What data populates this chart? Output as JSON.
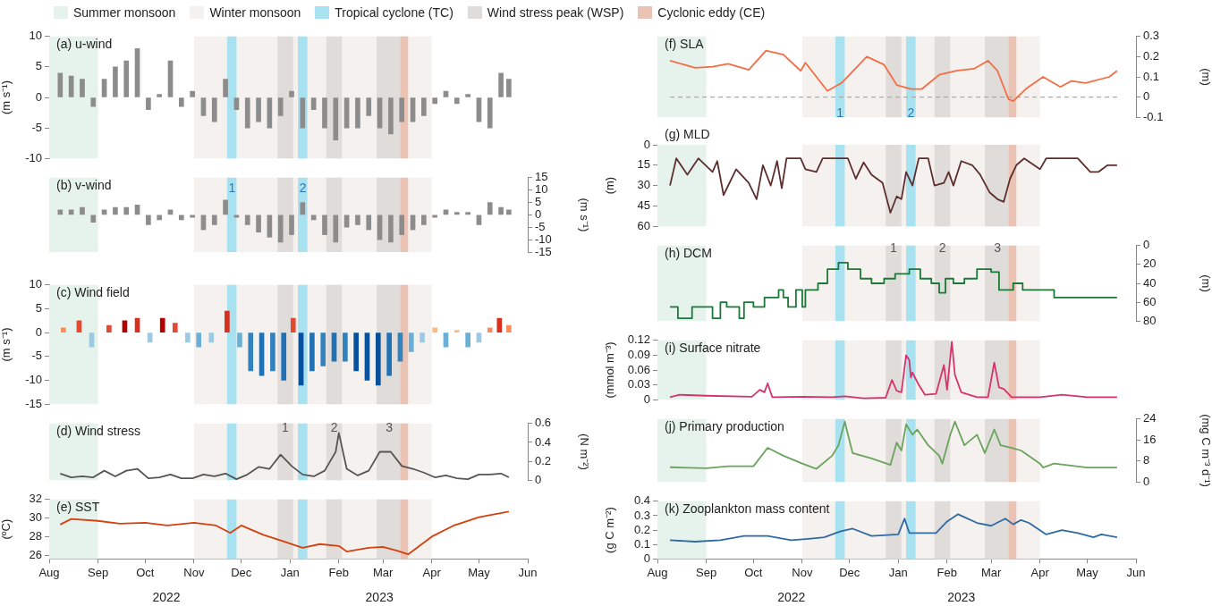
{
  "chart_data": [
    {
      "type": "bar",
      "title": "(a) u-wind",
      "ylabel": "(m s⁻¹)",
      "color": "#8c8c8c",
      "legend": "top right",
      "tick_labels": "y",
      "xlim": [
        "2022-08-01",
        "2023-06-01"
      ],
      "ylim": [
        -10,
        10
      ],
      "yticks": [
        -10,
        -5,
        0,
        5,
        10
      ],
      "x": [
        "2022-08-08",
        "2022-08-15",
        "2022-08-22",
        "2022-08-29",
        "2022-09-05",
        "2022-09-12",
        "2022-09-19",
        "2022-09-26",
        "2022-10-03",
        "2022-10-10",
        "2022-10-17",
        "2022-10-24",
        "2022-10-31",
        "2022-11-07",
        "2022-11-14",
        "2022-11-21",
        "2022-11-28",
        "2022-12-05",
        "2022-12-12",
        "2022-12-19",
        "2022-12-26",
        "2023-01-02",
        "2023-01-09",
        "2023-01-16",
        "2023-01-23",
        "2023-01-30",
        "2023-02-06",
        "2023-02-13",
        "2023-02-20",
        "2023-02-27",
        "2023-03-06",
        "2023-03-13",
        "2023-03-20",
        "2023-03-27",
        "2023-04-03",
        "2023-04-10",
        "2023-04-17",
        "2023-04-24",
        "2023-05-01",
        "2023-05-08",
        "2023-05-15",
        "2023-05-20"
      ],
      "values": [
        4,
        3.5,
        3,
        -1.5,
        3,
        5,
        6,
        8,
        -2,
        0.5,
        6,
        -1.5,
        1,
        -3,
        -4,
        3,
        -2,
        -5,
        -4,
        -5,
        -3,
        1,
        -5,
        -2,
        -5,
        -7,
        -5,
        -5,
        -3,
        -5,
        -6,
        -4,
        -4,
        -3,
        -1,
        1,
        -1,
        0.5,
        -4,
        -5,
        4,
        3
      ],
      "bands": [
        {
          "axis": "x",
          "from": "2022-08-01",
          "to": "2022-09-01",
          "label": "Summer monsoon",
          "color": "#e6f2ec"
        },
        {
          "axis": "x",
          "from": "2022-11-01",
          "to": "2023-04-01",
          "label": "Winter monsoon",
          "color": "#f5f1ef"
        },
        {
          "axis": "x",
          "from": "2022-11-22",
          "to": "2022-11-28",
          "label": "Tropical cyclone (TC)",
          "color": "#a8e2f0"
        },
        {
          "axis": "x",
          "from": "2022-12-24",
          "to": "2023-01-03",
          "label": "Wind stress peak (WSP)",
          "color": "#e0dcda"
        },
        {
          "axis": "x",
          "from": "2023-01-06",
          "to": "2023-01-12",
          "color": "#a8e2f0"
        },
        {
          "axis": "x",
          "from": "2023-01-24",
          "to": "2023-02-03",
          "color": "#e0dcda"
        },
        {
          "axis": "x",
          "from": "2023-02-25",
          "to": "2023-03-12",
          "color": "#e0dcda"
        },
        {
          "axis": "x",
          "from": "2023-03-12",
          "to": "2023-03-17",
          "label": "Cyclonic eddy (CE)",
          "color": "#ebc3b5"
        }
      ]
    },
    {
      "type": "bar",
      "title": "(b) v-wind",
      "ylabel": "(m s⁻¹)",
      "color": "#8c8c8c",
      "tick_labels": "y",
      "xlim": [
        "2022-08-01",
        "2023-06-01"
      ],
      "ylim": [
        -15,
        15
      ],
      "yticks": [
        -15,
        -10,
        -5,
        0,
        5,
        10,
        15
      ],
      "x": [
        "2022-08-08",
        "2022-08-15",
        "2022-08-22",
        "2022-08-29",
        "2022-09-05",
        "2022-09-12",
        "2022-09-19",
        "2022-09-26",
        "2022-10-03",
        "2022-10-10",
        "2022-10-17",
        "2022-10-24",
        "2022-10-31",
        "2022-11-07",
        "2022-11-14",
        "2022-11-21",
        "2022-11-28",
        "2022-12-05",
        "2022-12-12",
        "2022-12-19",
        "2022-12-26",
        "2023-01-02",
        "2023-01-09",
        "2023-01-16",
        "2023-01-23",
        "2023-01-30",
        "2023-02-06",
        "2023-02-13",
        "2023-02-20",
        "2023-02-27",
        "2023-03-06",
        "2023-03-13",
        "2023-03-20",
        "2023-03-27",
        "2023-04-03",
        "2023-04-10",
        "2023-04-17",
        "2023-04-24",
        "2023-05-01",
        "2023-05-08",
        "2023-05-15",
        "2023-05-20"
      ],
      "values": [
        2,
        2,
        3,
        -3,
        2,
        3,
        3,
        4,
        -4,
        -2,
        2,
        -2,
        -1,
        -6,
        -4,
        6,
        -1,
        -4,
        -7,
        -9,
        -11,
        -8,
        5,
        -2,
        -8,
        -11,
        -5,
        -4,
        -6,
        -10,
        -11,
        -8,
        -6,
        -4,
        -1,
        2,
        1,
        1,
        -4,
        5,
        3,
        2
      ],
      "annotations": [
        "1",
        "2"
      ],
      "bands": [
        {
          "axis": "x",
          "from": "2022-08-01",
          "to": "2022-09-01",
          "color": "#e6f2ec"
        },
        {
          "axis": "x",
          "from": "2022-11-01",
          "to": "2023-04-01",
          "color": "#f5f1ef"
        },
        {
          "axis": "x",
          "from": "2022-11-22",
          "to": "2022-11-28",
          "color": "#a8e2f0"
        },
        {
          "axis": "x",
          "from": "2022-12-24",
          "to": "2023-01-03",
          "color": "#e0dcda"
        },
        {
          "axis": "x",
          "from": "2023-01-06",
          "to": "2023-01-12",
          "color": "#a8e2f0"
        },
        {
          "axis": "x",
          "from": "2023-01-24",
          "to": "2023-02-03",
          "color": "#e0dcda"
        },
        {
          "axis": "x",
          "from": "2023-02-25",
          "to": "2023-03-12",
          "color": "#e0dcda"
        },
        {
          "axis": "x",
          "from": "2023-03-12",
          "to": "2023-03-17",
          "color": "#ebc3b5"
        }
      ]
    },
    {
      "type": "bar",
      "title": "(c) Wind field",
      "ylabel": "(m s⁻¹)",
      "tick_labels": "y",
      "xlim": [
        "2022-08-01",
        "2023-06-01"
      ],
      "ylim": [
        -15,
        10
      ],
      "yticks": [
        -15,
        -10,
        -5,
        0,
        5,
        10
      ],
      "x": [
        "2022-08-10",
        "2022-08-20",
        "2022-08-28",
        "2022-09-08",
        "2022-09-18",
        "2022-09-26",
        "2022-10-04",
        "2022-10-12",
        "2022-10-20",
        "2022-10-28",
        "2022-11-04",
        "2022-11-12",
        "2022-11-22",
        "2022-11-30",
        "2022-12-07",
        "2022-12-14",
        "2022-12-21",
        "2022-12-28",
        "2023-01-03",
        "2023-01-08",
        "2023-01-15",
        "2023-01-22",
        "2023-01-29",
        "2023-02-05",
        "2023-02-12",
        "2023-02-19",
        "2023-02-26",
        "2023-03-05",
        "2023-03-12",
        "2023-03-19",
        "2023-03-26",
        "2023-04-03",
        "2023-04-10",
        "2023-04-17",
        "2023-04-24",
        "2023-05-01",
        "2023-05-08",
        "2023-05-14",
        "2023-05-20"
      ],
      "values": [
        1,
        2.5,
        -3,
        1.5,
        2.5,
        3,
        -2,
        3,
        2,
        -2,
        -3,
        -2,
        4.5,
        -3,
        -8,
        -9,
        -8,
        -10,
        3,
        -11,
        -8,
        -7,
        -6,
        -6,
        -8,
        -10,
        -11,
        -9,
        -6,
        -4,
        -2,
        1,
        -3,
        0.5,
        -3,
        -2,
        1,
        3,
        1.5
      ],
      "colors": [
        "#fc8d59",
        "#e34a33",
        "#9ecae1",
        "#e34a33",
        "#b30000",
        "#d7301f",
        "#9ecae1",
        "#b30000",
        "#e34a33",
        "#9ecae1",
        "#6baed6",
        "#9ecae1",
        "#d7301f",
        "#6baed6",
        "#3182bd",
        "#2171b5",
        "#3182bd",
        "#2171b5",
        "#e34a33",
        "#08519c",
        "#2171b5",
        "#3182bd",
        "#2171b5",
        "#3182bd",
        "#08519c",
        "#08519c",
        "#08519c",
        "#2171b5",
        "#3182bd",
        "#6baed6",
        "#9ecae1",
        "#fdbb84",
        "#6baed6",
        "#fdbb84",
        "#6baed6",
        "#9ecae1",
        "#fc8d59",
        "#d7301f",
        "#fc8d59"
      ],
      "bands": [
        {
          "axis": "x",
          "from": "2022-08-01",
          "to": "2022-09-01",
          "color": "#e6f2ec"
        },
        {
          "axis": "x",
          "from": "2022-11-01",
          "to": "2023-04-01",
          "color": "#f5f1ef"
        },
        {
          "axis": "x",
          "from": "2022-11-22",
          "to": "2022-11-28",
          "color": "#a8e2f0"
        },
        {
          "axis": "x",
          "from": "2022-12-24",
          "to": "2023-01-03",
          "color": "#e0dcda"
        },
        {
          "axis": "x",
          "from": "2023-01-06",
          "to": "2023-01-12",
          "color": "#a8e2f0"
        },
        {
          "axis": "x",
          "from": "2023-01-24",
          "to": "2023-02-03",
          "color": "#e0dcda"
        },
        {
          "axis": "x",
          "from": "2023-02-25",
          "to": "2023-03-12",
          "color": "#e0dcda"
        },
        {
          "axis": "x",
          "from": "2023-03-12",
          "to": "2023-03-17",
          "color": "#ebc3b5"
        }
      ]
    },
    {
      "type": "line",
      "title": "(d) Wind stress",
      "ylabel": "(N m⁻²)",
      "color": "#555555",
      "tick_labels": "y",
      "xlim": [
        "2022-08-01",
        "2023-06-01"
      ],
      "ylim": [
        0,
        0.6
      ],
      "yticks": [
        0,
        0.2,
        0.4,
        0.6
      ],
      "x": [
        "2022-08-08",
        "2022-08-15",
        "2022-08-22",
        "2022-08-29",
        "2022-09-05",
        "2022-09-12",
        "2022-09-19",
        "2022-09-26",
        "2022-10-03",
        "2022-10-10",
        "2022-10-17",
        "2022-10-24",
        "2022-10-31",
        "2022-11-07",
        "2022-11-14",
        "2022-11-21",
        "2022-11-28",
        "2022-12-05",
        "2022-12-12",
        "2022-12-19",
        "2022-12-26",
        "2023-01-02",
        "2023-01-09",
        "2023-01-16",
        "2023-01-23",
        "2023-01-30",
        "2023-02-01",
        "2023-02-06",
        "2023-02-13",
        "2023-02-20",
        "2023-02-27",
        "2023-03-06",
        "2023-03-13",
        "2023-03-20",
        "2023-03-27",
        "2023-04-03",
        "2023-04-10",
        "2023-04-17",
        "2023-04-24",
        "2023-05-01",
        "2023-05-08",
        "2023-05-15",
        "2023-05-20"
      ],
      "values": [
        0.07,
        0.03,
        0.04,
        0.03,
        0.1,
        0.04,
        0.1,
        0.12,
        0.02,
        0.03,
        0.06,
        0.02,
        0.02,
        0.06,
        0.04,
        0.07,
        0.01,
        0.06,
        0.14,
        0.12,
        0.27,
        0.15,
        0.06,
        0.04,
        0.1,
        0.3,
        0.5,
        0.12,
        0.05,
        0.1,
        0.3,
        0.3,
        0.15,
        0.12,
        0.08,
        0.03,
        0.05,
        0.02,
        0.01,
        0.06,
        0.06,
        0.07,
        0.03
      ],
      "annotations": [
        {
          "text": "1",
          "x": "2022-12-29",
          "y": 0.55
        },
        {
          "text": "2",
          "x": "2023-01-29",
          "y": 0.55
        },
        {
          "text": "3",
          "x": "2023-03-05",
          "y": 0.55
        }
      ],
      "bands": [
        {
          "axis": "x",
          "from": "2022-08-01",
          "to": "2022-09-01",
          "color": "#e6f2ec"
        },
        {
          "axis": "x",
          "from": "2022-11-01",
          "to": "2023-04-01",
          "color": "#f5f1ef"
        },
        {
          "axis": "x",
          "from": "2022-11-22",
          "to": "2022-11-28",
          "color": "#a8e2f0"
        },
        {
          "axis": "x",
          "from": "2022-12-24",
          "to": "2023-01-03",
          "color": "#e0dcda"
        },
        {
          "axis": "x",
          "from": "2023-01-06",
          "to": "2023-01-12",
          "color": "#a8e2f0"
        },
        {
          "axis": "x",
          "from": "2023-01-24",
          "to": "2023-02-03",
          "color": "#e0dcda"
        },
        {
          "axis": "x",
          "from": "2023-02-25",
          "to": "2023-03-12",
          "color": "#e0dcda"
        },
        {
          "axis": "x",
          "from": "2023-03-12",
          "to": "2023-03-17",
          "color": "#ebc3b5"
        }
      ]
    },
    {
      "type": "line",
      "title": "(e) SST",
      "ylabel": "(ºC)",
      "color": "#d4410f",
      "xlim": [
        "2022-08-01",
        "2023-06-01"
      ],
      "ylim": [
        25.6,
        32
      ],
      "yticks": [
        26,
        28,
        30,
        32
      ],
      "xticks": [
        {
          "value": "2022-08-01",
          "label": "Aug"
        },
        {
          "value": "2022-09-01",
          "label": "Sep"
        },
        {
          "value": "2022-10-01",
          "label": "Oct"
        },
        {
          "value": "2022-11-01",
          "label": "Nov"
        },
        {
          "value": "2022-12-01",
          "label": "Dec"
        },
        {
          "value": "2023-01-01",
          "label": "Jan"
        },
        {
          "value": "2023-02-01",
          "label": "Feb"
        },
        {
          "value": "2023-03-01",
          "label": "Mar"
        },
        {
          "value": "2023-04-01",
          "label": "Apr"
        },
        {
          "value": "2023-05-01",
          "label": "May"
        },
        {
          "value": "2023-06-01",
          "label": "Jun"
        }
      ],
      "x": [
        "2022-08-08",
        "2022-08-15",
        "2022-09-01",
        "2022-09-15",
        "2022-10-01",
        "2022-10-15",
        "2022-11-01",
        "2022-11-15",
        "2022-11-24",
        "2022-12-01",
        "2022-12-15",
        "2022-12-26",
        "2023-01-09",
        "2023-01-20",
        "2023-02-01",
        "2023-02-06",
        "2023-02-20",
        "2023-03-01",
        "2023-03-10",
        "2023-03-17",
        "2023-04-01",
        "2023-04-15",
        "2023-05-01",
        "2023-05-20"
      ],
      "values": [
        29.3,
        29.9,
        29.7,
        29.4,
        29.5,
        29.2,
        29.5,
        29.2,
        28.4,
        29.2,
        28.2,
        27.6,
        26.8,
        27.2,
        27.0,
        26.4,
        26.8,
        26.9,
        26.5,
        26.1,
        28.0,
        29.2,
        30.1,
        30.7
      ],
      "annotations": [
        "2022",
        "2023"
      ],
      "bands": [
        {
          "axis": "x",
          "from": "2022-08-01",
          "to": "2022-09-01",
          "color": "#e6f2ec"
        },
        {
          "axis": "x",
          "from": "2022-11-01",
          "to": "2023-04-01",
          "color": "#f5f1ef"
        },
        {
          "axis": "x",
          "from": "2022-11-22",
          "to": "2022-11-28",
          "color": "#a8e2f0"
        },
        {
          "axis": "x",
          "from": "2022-12-24",
          "to": "2023-01-03",
          "color": "#e0dcda"
        },
        {
          "axis": "x",
          "from": "2023-01-06",
          "to": "2023-01-12",
          "color": "#a8e2f0"
        },
        {
          "axis": "x",
          "from": "2023-01-24",
          "to": "2023-02-03",
          "color": "#e0dcda"
        },
        {
          "axis": "x",
          "from": "2023-02-25",
          "to": "2023-03-12",
          "color": "#e0dcda"
        },
        {
          "axis": "x",
          "from": "2023-03-12",
          "to": "2023-03-17",
          "color": "#ebc3b5"
        }
      ]
    },
    {
      "type": "line",
      "title": "(f) SLA",
      "ylabel": "(m)",
      "color": "#f46d43",
      "tick_labels": "y",
      "xlim": [
        "2022-08-01",
        "2023-06-01"
      ],
      "ylim": [
        -0.1,
        0.3
      ],
      "yticks": [
        -0.1,
        0,
        0.1,
        0.2,
        0.3
      ],
      "x": [
        "2022-08-09",
        "2022-08-25",
        "2022-09-05",
        "2022-09-15",
        "2022-09-28",
        "2022-10-09",
        "2022-10-20",
        "2022-10-31",
        "2022-11-03",
        "2022-11-17",
        "2022-11-26",
        "2022-12-12",
        "2022-12-23",
        "2022-12-31",
        "2023-01-09",
        "2023-01-16",
        "2023-01-27",
        "2023-02-07",
        "2023-02-18",
        "2023-02-27",
        "2023-03-05",
        "2023-03-12",
        "2023-03-15",
        "2023-03-23",
        "2023-04-03",
        "2023-04-14",
        "2023-04-21",
        "2023-04-30",
        "2023-05-15",
        "2023-05-20"
      ],
      "values": [
        0.18,
        0.145,
        0.15,
        0.165,
        0.135,
        0.23,
        0.21,
        0.13,
        0.17,
        0.03,
        0.07,
        0.2,
        0.16,
        0.06,
        0.04,
        0.04,
        0.11,
        0.13,
        0.14,
        0.18,
        0.13,
        -0.01,
        -0.02,
        0.04,
        0.1,
        0.05,
        0.08,
        0.07,
        0.1,
        0.13
      ],
      "ref_lines": [
        {
          "axis": "y",
          "value": 0,
          "color": "#aaaaaa",
          "line_style": "dashed"
        }
      ],
      "annotations": [
        {
          "text": "1",
          "x": "2022-11-25",
          "y": -0.08
        },
        {
          "text": "2",
          "x": "2023-01-09",
          "y": -0.08
        }
      ],
      "bands": [
        {
          "axis": "x",
          "from": "2022-08-01",
          "to": "2022-09-01",
          "color": "#e6f2ec"
        },
        {
          "axis": "x",
          "from": "2022-11-01",
          "to": "2023-04-01",
          "color": "#f5f1ef"
        },
        {
          "axis": "x",
          "from": "2022-11-22",
          "to": "2022-11-28",
          "color": "#a8e2f0"
        },
        {
          "axis": "x",
          "from": "2022-12-24",
          "to": "2023-01-03",
          "color": "#e0dcda"
        },
        {
          "axis": "x",
          "from": "2023-01-06",
          "to": "2023-01-12",
          "color": "#a8e2f0"
        },
        {
          "axis": "x",
          "from": "2023-01-24",
          "to": "2023-02-03",
          "color": "#e0dcda"
        },
        {
          "axis": "x",
          "from": "2023-02-25",
          "to": "2023-03-12",
          "color": "#e0dcda"
        },
        {
          "axis": "x",
          "from": "2023-03-12",
          "to": "2023-03-17",
          "color": "#ebc3b5"
        }
      ]
    },
    {
      "type": "line",
      "title": "(g) MLD",
      "ylabel": "(m)",
      "color": "#5d2e2e",
      "tick_labels": "y",
      "xlim": [
        "2022-08-01",
        "2023-06-01"
      ],
      "ylim": [
        60,
        0
      ],
      "yticks": [
        0,
        15,
        30,
        45,
        60
      ],
      "x": [
        "2022-08-09",
        "2022-08-13",
        "2022-08-20",
        "2022-08-27",
        "2022-09-05",
        "2022-09-08",
        "2022-09-12",
        "2022-09-20",
        "2022-09-28",
        "2022-10-03",
        "2022-10-07",
        "2022-10-12",
        "2022-10-16",
        "2022-10-19",
        "2022-10-22",
        "2022-10-31",
        "2022-11-03",
        "2022-11-10",
        "2022-11-14",
        "2022-11-30",
        "2022-12-05",
        "2022-12-10",
        "2022-12-15",
        "2022-12-22",
        "2022-12-27",
        "2022-12-31",
        "2023-01-03",
        "2023-01-06",
        "2023-01-10",
        "2023-01-14",
        "2023-01-20",
        "2023-01-24",
        "2023-01-30",
        "2023-02-02",
        "2023-02-05",
        "2023-02-10",
        "2023-02-17",
        "2023-02-22",
        "2023-02-28",
        "2023-03-05",
        "2023-03-09",
        "2023-03-13",
        "2023-03-17",
        "2023-03-22",
        "2023-04-01",
        "2023-04-05",
        "2023-04-25",
        "2023-05-03",
        "2023-05-08",
        "2023-05-14",
        "2023-05-20"
      ],
      "values": [
        30,
        10,
        22,
        10,
        20,
        12,
        37,
        18,
        28,
        40,
        15,
        30,
        12,
        32,
        10,
        10,
        18,
        20,
        10,
        10,
        25,
        13,
        22,
        28,
        50,
        38,
        40,
        20,
        30,
        10,
        10,
        30,
        28,
        20,
        30,
        12,
        15,
        22,
        35,
        40,
        42,
        25,
        15,
        10,
        18,
        10,
        10,
        20,
        20,
        15,
        15
      ],
      "bands": [
        {
          "axis": "x",
          "from": "2022-08-01",
          "to": "2022-09-01",
          "color": "#e6f2ec"
        },
        {
          "axis": "x",
          "from": "2022-11-01",
          "to": "2023-04-01",
          "color": "#f5f1ef"
        },
        {
          "axis": "x",
          "from": "2022-11-22",
          "to": "2022-11-28",
          "color": "#a8e2f0"
        },
        {
          "axis": "x",
          "from": "2022-12-24",
          "to": "2023-01-03",
          "color": "#e0dcda"
        },
        {
          "axis": "x",
          "from": "2023-01-06",
          "to": "2023-01-12",
          "color": "#a8e2f0"
        },
        {
          "axis": "x",
          "from": "2023-01-24",
          "to": "2023-02-03",
          "color": "#e0dcda"
        },
        {
          "axis": "x",
          "from": "2023-02-25",
          "to": "2023-03-12",
          "color": "#e0dcda"
        },
        {
          "axis": "x",
          "from": "2023-03-12",
          "to": "2023-03-17",
          "color": "#ebc3b5"
        }
      ]
    },
    {
      "type": "step",
      "title": "(h) DCM",
      "ylabel": "(m)",
      "color": "#1b7837",
      "tick_labels": "y",
      "xlim": [
        "2022-08-01",
        "2023-06-01"
      ],
      "ylim": [
        80,
        0
      ],
      "yticks": [
        0,
        20,
        40,
        60,
        80
      ],
      "x": [
        "2022-08-09",
        "2022-08-14",
        "2022-08-23",
        "2022-09-05",
        "2022-09-10",
        "2022-09-14",
        "2022-09-22",
        "2022-09-25",
        "2022-10-01",
        "2022-10-08",
        "2022-10-17",
        "2022-10-20",
        "2022-10-23",
        "2022-10-28",
        "2022-11-01",
        "2022-11-03",
        "2022-11-11",
        "2022-11-17",
        "2022-11-24",
        "2022-11-30",
        "2022-12-08",
        "2022-12-15",
        "2022-12-23",
        "2022-12-30",
        "2023-01-08",
        "2023-01-15",
        "2023-01-22",
        "2023-01-27",
        "2023-01-31",
        "2023-02-05",
        "2023-02-12",
        "2023-02-20",
        "2023-03-01",
        "2023-03-06",
        "2023-03-15",
        "2023-03-21",
        "2023-04-10",
        "2023-05-20"
      ],
      "values": [
        65,
        77,
        65,
        77,
        60,
        65,
        77,
        60,
        65,
        55,
        47,
        55,
        65,
        47,
        65,
        47,
        40,
        25,
        18,
        25,
        35,
        40,
        35,
        30,
        25,
        35,
        40,
        50,
        35,
        40,
        35,
        25,
        28,
        47,
        40,
        47,
        55,
        55
      ],
      "annotations": [
        {
          "text": "1",
          "x": "2022-12-29",
          "y": 3
        },
        {
          "text": "2",
          "x": "2023-01-29",
          "y": 3
        },
        {
          "text": "3",
          "x": "2023-03-05",
          "y": 3
        }
      ],
      "bands": [
        {
          "axis": "x",
          "from": "2022-08-01",
          "to": "2022-09-01",
          "color": "#e6f2ec"
        },
        {
          "axis": "x",
          "from": "2022-11-01",
          "to": "2023-04-01",
          "color": "#f5f1ef"
        },
        {
          "axis": "x",
          "from": "2022-11-22",
          "to": "2022-11-28",
          "color": "#a8e2f0"
        },
        {
          "axis": "x",
          "from": "2022-12-24",
          "to": "2023-01-03",
          "color": "#e0dcda"
        },
        {
          "axis": "x",
          "from": "2023-01-06",
          "to": "2023-01-12",
          "color": "#a8e2f0"
        },
        {
          "axis": "x",
          "from": "2023-01-24",
          "to": "2023-02-03",
          "color": "#e0dcda"
        },
        {
          "axis": "x",
          "from": "2023-02-25",
          "to": "2023-03-12",
          "color": "#e0dcda"
        },
        {
          "axis": "x",
          "from": "2023-03-12",
          "to": "2023-03-17",
          "color": "#ebc3b5"
        }
      ]
    },
    {
      "type": "line",
      "title": "(i) Surface nitrate",
      "ylabel": "(mmol m⁻³)",
      "color": "#d6336c",
      "tick_labels": "y",
      "xlim": [
        "2022-08-01",
        "2023-06-01"
      ],
      "ylim": [
        0,
        0.12
      ],
      "yticks": [
        0,
        0.03,
        0.06,
        0.09,
        0.12
      ],
      "x": [
        "2022-08-09",
        "2022-08-15",
        "2022-09-01",
        "2022-09-30",
        "2022-10-05",
        "2022-10-08",
        "2022-10-10",
        "2022-10-13",
        "2022-11-01",
        "2022-11-20",
        "2022-11-28",
        "2022-12-10",
        "2022-12-24",
        "2022-12-28",
        "2022-12-31",
        "2023-01-03",
        "2023-01-06",
        "2023-01-08",
        "2023-01-09",
        "2023-01-10",
        "2023-01-14",
        "2023-01-18",
        "2023-01-25",
        "2023-01-30",
        "2023-02-01",
        "2023-02-04",
        "2023-02-06",
        "2023-02-10",
        "2023-02-20",
        "2023-02-27",
        "2023-03-03",
        "2023-03-06",
        "2023-03-09",
        "2023-03-14",
        "2023-04-01",
        "2023-04-15",
        "2023-05-01",
        "2023-05-20"
      ],
      "values": [
        0.005,
        0.01,
        0.008,
        0.006,
        0.02,
        0.015,
        0.033,
        0.005,
        0.006,
        0.005,
        0.007,
        0.003,
        0.004,
        0.04,
        0.018,
        0.015,
        0.09,
        0.08,
        0.045,
        0.055,
        0.03,
        0.01,
        0.012,
        0.07,
        0.02,
        0.117,
        0.05,
        0.015,
        0.005,
        0.005,
        0.075,
        0.025,
        0.022,
        0.005,
        0.005,
        0.01,
        0.005,
        0.005
      ],
      "bands": [
        {
          "axis": "x",
          "from": "2022-08-01",
          "to": "2022-09-01",
          "color": "#e6f2ec"
        },
        {
          "axis": "x",
          "from": "2022-11-01",
          "to": "2023-04-01",
          "color": "#f5f1ef"
        },
        {
          "axis": "x",
          "from": "2022-11-22",
          "to": "2022-11-28",
          "color": "#a8e2f0"
        },
        {
          "axis": "x",
          "from": "2022-12-24",
          "to": "2023-01-03",
          "color": "#e0dcda"
        },
        {
          "axis": "x",
          "from": "2023-01-06",
          "to": "2023-01-12",
          "color": "#a8e2f0"
        },
        {
          "axis": "x",
          "from": "2023-01-24",
          "to": "2023-02-03",
          "color": "#e0dcda"
        },
        {
          "axis": "x",
          "from": "2023-02-25",
          "to": "2023-03-12",
          "color": "#e0dcda"
        },
        {
          "axis": "x",
          "from": "2023-03-12",
          "to": "2023-03-17",
          "color": "#ebc3b5"
        }
      ]
    },
    {
      "type": "line",
      "title": "(j) Primary production",
      "ylabel": "(mg C m⁻³ d⁻¹)",
      "color": "#6aa35c",
      "tick_labels": "y",
      "xlim": [
        "2022-08-01",
        "2023-06-01"
      ],
      "ylim": [
        0,
        24
      ],
      "yticks": [
        0,
        8,
        16,
        24
      ],
      "x": [
        "2022-08-09",
        "2022-09-01",
        "2022-09-15",
        "2022-10-01",
        "2022-10-10",
        "2022-10-20",
        "2022-11-01",
        "2022-11-10",
        "2022-11-20",
        "2022-11-24",
        "2022-11-28",
        "2022-12-03",
        "2022-12-15",
        "2022-12-27",
        "2022-12-31",
        "2023-01-03",
        "2023-01-06",
        "2023-01-10",
        "2023-01-13",
        "2023-01-20",
        "2023-01-27",
        "2023-01-29",
        "2023-02-03",
        "2023-02-06",
        "2023-02-12",
        "2023-02-20",
        "2023-02-25",
        "2023-03-03",
        "2023-03-07",
        "2023-03-14",
        "2023-03-20",
        "2023-04-01",
        "2023-04-03",
        "2023-04-10",
        "2023-05-01",
        "2023-05-20"
      ],
      "values": [
        5.6,
        5.2,
        6,
        6,
        13,
        10,
        7,
        5,
        10,
        14,
        23,
        11,
        9,
        6.5,
        15,
        12,
        22,
        18,
        20,
        14,
        10,
        7,
        18,
        23,
        14,
        18,
        11,
        20,
        14,
        13,
        12,
        7,
        5.5,
        7,
        5.5,
        5.5
      ],
      "bands": [
        {
          "axis": "x",
          "from": "2022-08-01",
          "to": "2022-09-01",
          "color": "#e6f2ec"
        },
        {
          "axis": "x",
          "from": "2022-11-01",
          "to": "2023-04-01",
          "color": "#f5f1ef"
        },
        {
          "axis": "x",
          "from": "2022-11-22",
          "to": "2022-11-28",
          "color": "#a8e2f0"
        },
        {
          "axis": "x",
          "from": "2022-12-24",
          "to": "2023-01-03",
          "color": "#e0dcda"
        },
        {
          "axis": "x",
          "from": "2023-01-06",
          "to": "2023-01-12",
          "color": "#a8e2f0"
        },
        {
          "axis": "x",
          "from": "2023-01-24",
          "to": "2023-02-03",
          "color": "#e0dcda"
        },
        {
          "axis": "x",
          "from": "2023-02-25",
          "to": "2023-03-12",
          "color": "#e0dcda"
        },
        {
          "axis": "x",
          "from": "2023-03-12",
          "to": "2023-03-17",
          "color": "#ebc3b5"
        }
      ]
    },
    {
      "type": "line",
      "title": "(k) Zooplankton mass content",
      "ylabel": "(g C m⁻²)",
      "color": "#2f6aa3",
      "xlim": [
        "2022-08-01",
        "2023-06-01"
      ],
      "ylim": [
        0,
        0.4
      ],
      "yticks": [
        0,
        0.1,
        0.2,
        0.3,
        0.4
      ],
      "xticks": [
        {
          "value": "2022-08-01",
          "label": "Aug"
        },
        {
          "value": "2022-09-01",
          "label": "Sep"
        },
        {
          "value": "2022-10-01",
          "label": "Oct"
        },
        {
          "value": "2022-11-01",
          "label": "Nov"
        },
        {
          "value": "2022-12-01",
          "label": "Dec"
        },
        {
          "value": "2023-01-01",
          "label": "Jan"
        },
        {
          "value": "2023-02-01",
          "label": "Feb"
        },
        {
          "value": "2023-03-01",
          "label": "Mar"
        },
        {
          "value": "2023-04-01",
          "label": "Apr"
        },
        {
          "value": "2023-05-01",
          "label": "May"
        },
        {
          "value": "2023-06-01",
          "label": "Jun"
        }
      ],
      "x": [
        "2022-08-09",
        "2022-08-25",
        "2022-09-10",
        "2022-09-25",
        "2022-10-10",
        "2022-10-25",
        "2022-11-05",
        "2022-11-15",
        "2022-11-25",
        "2022-12-03",
        "2022-12-15",
        "2023-01-01",
        "2023-01-05",
        "2023-01-08",
        "2023-01-15",
        "2023-01-25",
        "2023-02-01",
        "2023-02-08",
        "2023-02-12",
        "2023-02-20",
        "2023-03-01",
        "2023-03-10",
        "2023-03-15",
        "2023-03-20",
        "2023-03-25",
        "2023-04-05",
        "2023-04-15",
        "2023-04-25",
        "2023-05-05",
        "2023-05-10",
        "2023-05-20"
      ],
      "values": [
        0.13,
        0.12,
        0.13,
        0.16,
        0.16,
        0.13,
        0.14,
        0.15,
        0.19,
        0.21,
        0.16,
        0.17,
        0.28,
        0.18,
        0.18,
        0.18,
        0.26,
        0.31,
        0.29,
        0.25,
        0.23,
        0.28,
        0.24,
        0.27,
        0.25,
        0.17,
        0.2,
        0.18,
        0.15,
        0.17,
        0.15
      ],
      "annotations": [
        "2022",
        "2023"
      ],
      "bands": [
        {
          "axis": "x",
          "from": "2022-08-01",
          "to": "2022-09-01",
          "color": "#e6f2ec"
        },
        {
          "axis": "x",
          "from": "2022-11-01",
          "to": "2023-04-01",
          "color": "#f5f1ef"
        },
        {
          "axis": "x",
          "from": "2022-11-22",
          "to": "2022-11-28",
          "color": "#a8e2f0"
        },
        {
          "axis": "x",
          "from": "2022-12-24",
          "to": "2023-01-03",
          "color": "#e0dcda"
        },
        {
          "axis": "x",
          "from": "2023-01-06",
          "to": "2023-01-12",
          "color": "#a8e2f0"
        },
        {
          "axis": "x",
          "from": "2023-01-24",
          "to": "2023-02-03",
          "color": "#e0dcda"
        },
        {
          "axis": "x",
          "from": "2023-02-25",
          "to": "2023-03-12",
          "color": "#e0dcda"
        },
        {
          "axis": "x",
          "from": "2023-03-12",
          "to": "2023-03-17",
          "color": "#ebc3b5"
        }
      ]
    }
  ]
}
